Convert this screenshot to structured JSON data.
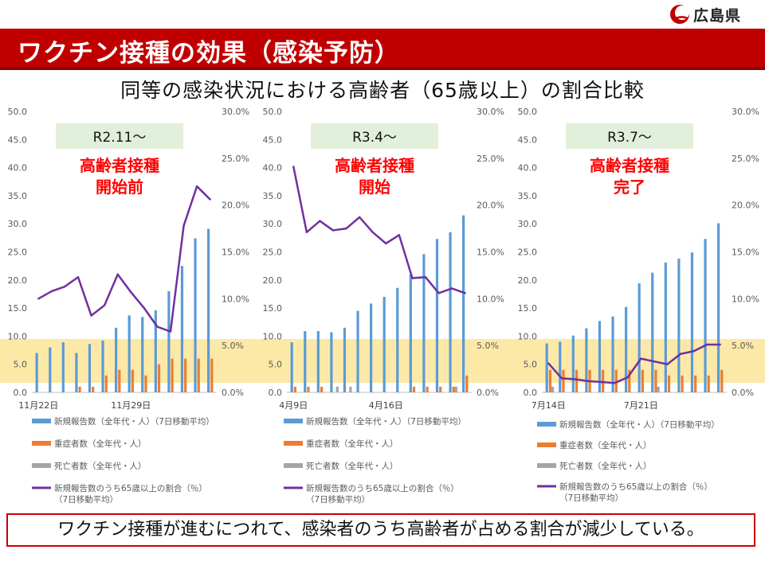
{
  "header": {
    "logo_text": "広島県",
    "title": "ワクチン接種の効果（感染予防）",
    "subtitle": "同等の感染状況における高齢者（65歳以上）の割合比較"
  },
  "footer": {
    "message": "ワクチン接種が進むにつれて、感染者のうち高齢者が占める割合が減少している。"
  },
  "colors": {
    "brand_red": "#c00000",
    "highlight_band": "#fce9a8",
    "period_box": "#e2efda",
    "new_cases": "#5b9bd5",
    "severe": "#ed7d31",
    "deaths": "#a5a5a5",
    "elderly_ratio": "#7030a0",
    "annotation_red": "#ff0000"
  },
  "chart_data": [
    {
      "type": "bar",
      "period_label": "R2.11～",
      "annotation": [
        "高齢者接種",
        "開始前"
      ],
      "y_left_ticks": [
        "50.0",
        "45.0",
        "40.0",
        "35.0",
        "30.0",
        "25.0",
        "20.0",
        "15.0",
        "10.0",
        "5.0",
        "0.0"
      ],
      "y_right_ticks": [
        "30.0%",
        "25.0%",
        "20.0%",
        "15.0%",
        "10.0%",
        "5.0%",
        "0.0%"
      ],
      "ylim": [
        0,
        50
      ],
      "y2lim": [
        0,
        30
      ],
      "highlight_band": [
        0,
        5.6
      ],
      "x_tick_labels": [
        {
          "index": 0,
          "text": "11月22日"
        },
        {
          "index": 7,
          "text": "11月29日"
        }
      ],
      "series": [
        {
          "name": "新規報告数（全年代・人）（7日移動平均）",
          "kind": "bar",
          "values": [
            7.0,
            8.0,
            8.9,
            7.0,
            8.6,
            9.2,
            11.5,
            13.7,
            13.4,
            14.6,
            18.0,
            22.5,
            27.4,
            29.1
          ]
        },
        {
          "name": "重症者数（全年代・人）",
          "kind": "bar",
          "values": [
            0,
            0,
            0,
            1,
            1,
            3,
            4,
            4,
            3,
            5,
            6,
            6,
            6,
            6
          ]
        },
        {
          "name": "死亡者数（全年代・人）",
          "kind": "bar",
          "values": [
            0,
            0,
            0,
            0,
            0,
            0,
            0,
            0,
            0,
            0,
            0,
            0,
            0,
            0
          ]
        },
        {
          "name": "新規報告数のうち65歳以上の割合（％）",
          "name_line2": "（7日移動平均）",
          "kind": "line",
          "values": [
            10.0,
            10.8,
            11.3,
            12.3,
            8.2,
            9.3,
            12.6,
            10.7,
            9.0,
            7.0,
            6.5,
            17.8,
            22.0,
            20.6
          ]
        }
      ]
    },
    {
      "type": "bar",
      "period_label": "R3.4～",
      "annotation": [
        "高齢者接種",
        "開始"
      ],
      "y_left_ticks": [
        "50.0",
        "45.0",
        "40.0",
        "35.0",
        "30.0",
        "25.0",
        "20.0",
        "15.0",
        "10.0",
        "5.0",
        "0.0"
      ],
      "y_right_ticks": [
        "30.0%",
        "25.0%",
        "20.0%",
        "15.0%",
        "10.0%",
        "5.0%",
        "0.0%"
      ],
      "ylim": [
        0,
        50
      ],
      "y2lim": [
        0,
        30
      ],
      "highlight_band": [
        0,
        5.6
      ],
      "x_tick_labels": [
        {
          "index": 0,
          "text": "4月9日"
        },
        {
          "index": 7,
          "text": "4月16日"
        }
      ],
      "series": [
        {
          "name": "新規報告数（全年代・人）（7日移動平均）",
          "kind": "bar",
          "values": [
            8.9,
            10.9,
            10.9,
            10.7,
            11.5,
            14.5,
            15.8,
            17.0,
            18.6,
            21.0,
            24.6,
            27.3,
            28.5,
            31.5
          ]
        },
        {
          "name": "重症者数（全年代・人）",
          "kind": "bar",
          "values": [
            1,
            1,
            1,
            0,
            0,
            0,
            0,
            0,
            0,
            1,
            1,
            1,
            1,
            3
          ]
        },
        {
          "name": "死亡者数（全年代・人）",
          "kind": "bar",
          "values": [
            0,
            0,
            0,
            1,
            1,
            0,
            0,
            0,
            0,
            0,
            0,
            0,
            1,
            0
          ]
        },
        {
          "name": "新規報告数のうち65歳以上の割合（％）",
          "name_line2": "（7日移動平均）",
          "kind": "line",
          "values": [
            24.1,
            17.1,
            18.3,
            17.3,
            17.5,
            18.7,
            17.1,
            15.9,
            16.8,
            12.2,
            12.3,
            10.6,
            11.1,
            10.6
          ]
        }
      ]
    },
    {
      "type": "bar",
      "period_label": "R3.7～",
      "annotation": [
        "高齢者接種",
        "完了"
      ],
      "y_left_ticks": [
        "50.0",
        "45.0",
        "40.0",
        "35.0",
        "30.0",
        "25.0",
        "20.0",
        "15.0",
        "10.0",
        "5.0",
        "0.0"
      ],
      "y_right_ticks": [
        "30.0%",
        "25.0%",
        "20.0%",
        "15.0%",
        "10.0%",
        "5.0%",
        "0.0%"
      ],
      "ylim": [
        0,
        50
      ],
      "y2lim": [
        0,
        30
      ],
      "highlight_band": [
        0,
        5.6
      ],
      "x_tick_labels": [
        {
          "index": 0,
          "text": "7月14日"
        },
        {
          "index": 7,
          "text": "7月21日"
        }
      ],
      "series": [
        {
          "name": "新規報告数（全年代・人）（7日移動平均）",
          "kind": "bar",
          "values": [
            8.7,
            9.0,
            10.1,
            11.4,
            12.7,
            13.5,
            15.2,
            19.4,
            21.3,
            23.1,
            23.8,
            24.9,
            27.3,
            30.1
          ]
        },
        {
          "name": "重症者数（全年代・人）",
          "kind": "bar",
          "values": [
            4,
            4,
            4,
            4,
            4,
            4,
            4,
            4,
            4,
            3,
            3,
            3,
            3,
            4
          ]
        },
        {
          "name": "死亡者数（全年代・人）",
          "kind": "bar",
          "values": [
            1,
            0,
            0,
            0,
            0,
            0,
            0,
            0,
            1,
            0,
            0,
            0,
            0,
            0
          ]
        },
        {
          "name": "新規報告数のうち65歳以上の割合（％）",
          "name_line2": "（7日移動平均）",
          "kind": "line",
          "values": [
            3.1,
            1.5,
            1.4,
            1.2,
            1.1,
            1.0,
            1.6,
            3.6,
            3.3,
            3.0,
            4.1,
            4.4,
            5.1,
            5.1
          ]
        }
      ]
    }
  ]
}
